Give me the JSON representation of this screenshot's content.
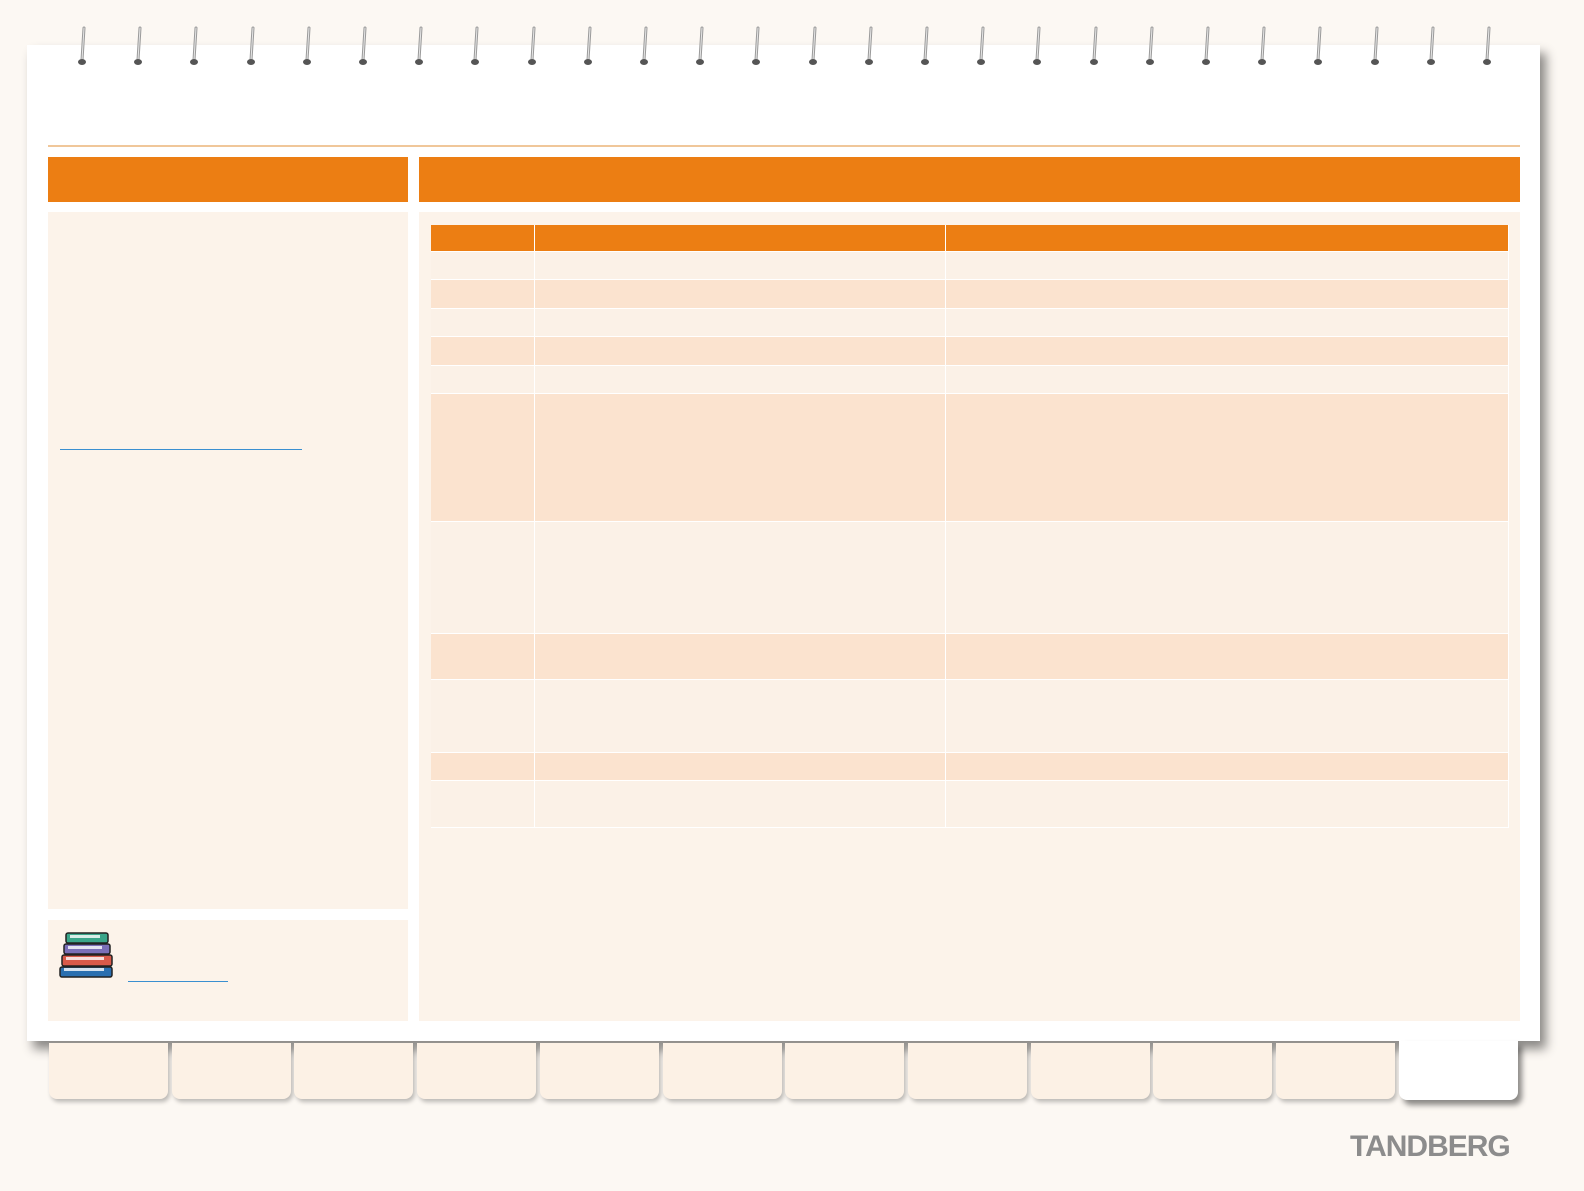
{
  "brand": {
    "logo_text": "TANDBERG"
  },
  "icons": {
    "binding": "spiral-binding-icon",
    "books": "books-icon"
  },
  "colors": {
    "accent": "#ec7e13",
    "panel": "#fcf3ea",
    "row_odd": "#fbf1e7",
    "row_even": "#fbe3cf",
    "link": "#3a8fd0",
    "page_background": "#fcf8f3",
    "logo": "#8c8c8c"
  },
  "table": {
    "columns": 3,
    "rows": 11
  },
  "navigation": {
    "tab_count": 12,
    "active_tab_index": 11
  }
}
